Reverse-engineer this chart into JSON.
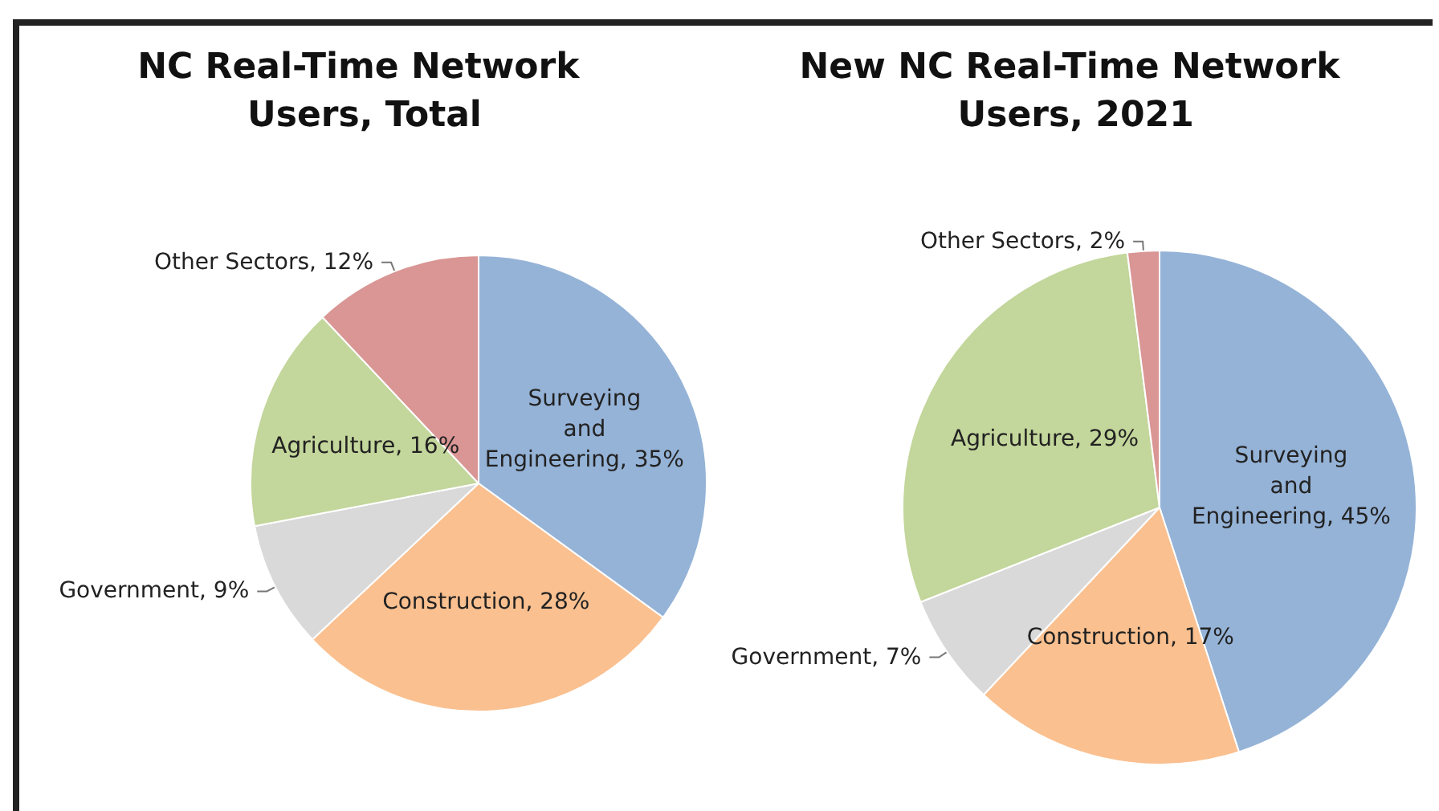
{
  "chart_data": [
    {
      "type": "pie",
      "title": "NC Real-Time Network Users, Total",
      "categories": [
        "Surveying and Engineering",
        "Construction",
        "Government",
        "Agriculture",
        "Other Sectors"
      ],
      "values": [
        35,
        28,
        9,
        16,
        12
      ],
      "value_labels": [
        "35%",
        "28%",
        "9%",
        "16%",
        "12%"
      ],
      "colors": [
        "#95b3d7",
        "#fac090",
        "#d9d9d9",
        "#c3d69b",
        "#d99694"
      ],
      "legend": false
    },
    {
      "type": "pie",
      "title": "New NC Real-Time Network Users, 2021",
      "categories": [
        "Surveying and Engineering",
        "Construction",
        "Government",
        "Agriculture",
        "Other Sectors"
      ],
      "values": [
        45,
        17,
        7,
        29,
        2
      ],
      "value_labels": [
        "45%",
        "17%",
        "7%",
        "29%",
        "2%"
      ],
      "colors": [
        "#95b3d7",
        "#fac090",
        "#d9d9d9",
        "#c3d69b",
        "#d99694"
      ],
      "legend": false
    }
  ]
}
